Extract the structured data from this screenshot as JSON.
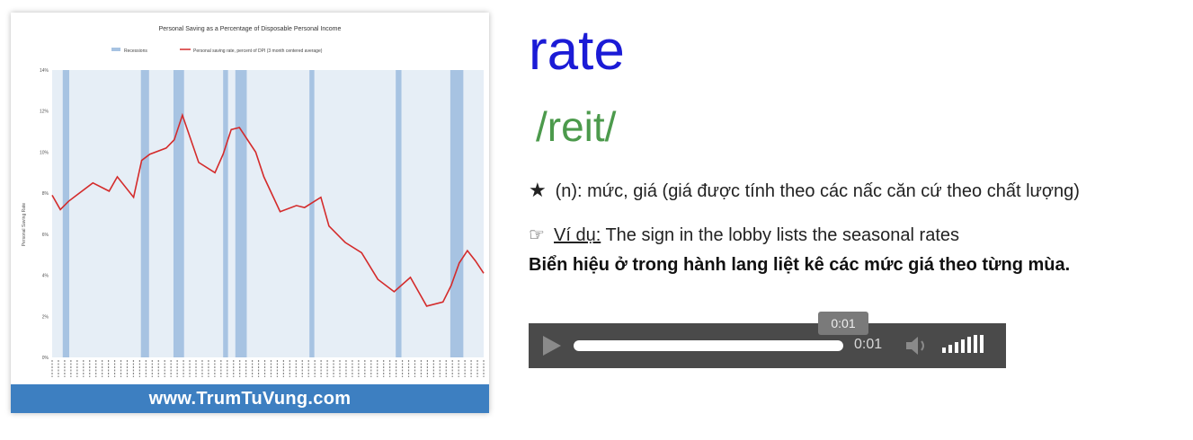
{
  "image_card": {
    "watermark": "www.TrumTuVung.com",
    "chart_data": {
      "type": "line",
      "title": "Personal Saving as a Percentage of Disposable Personal Income",
      "legend": [
        "Recessions",
        "Personal saving rate, percent of DPI (3 month centered average)"
      ],
      "ylabel": "Personal Saving Rate",
      "yticks": [
        "14%",
        "12%",
        "10%",
        "8%",
        "6%",
        "4%",
        "2%",
        "0%"
      ],
      "ylim": [
        0,
        14
      ],
      "xlim": [
        1959,
        2012
      ],
      "x": [
        1959,
        1960,
        1961,
        1962,
        1964,
        1966,
        1967,
        1969,
        1970,
        1971,
        1973,
        1974,
        1975,
        1977,
        1979,
        1980,
        1981,
        1982,
        1984,
        1985,
        1987,
        1989,
        1990,
        1992,
        1993,
        1995,
        1997,
        1999,
        2001,
        2003,
        2005,
        2007,
        2008,
        2009,
        2010,
        2011,
        2012
      ],
      "y": [
        7.9,
        7.2,
        7.6,
        7.9,
        8.5,
        8.1,
        8.8,
        7.8,
        9.6,
        9.9,
        10.2,
        10.6,
        11.8,
        9.5,
        9.0,
        9.9,
        11.1,
        11.2,
        10.0,
        8.8,
        7.1,
        7.4,
        7.3,
        7.8,
        6.4,
        5.6,
        5.1,
        3.8,
        3.2,
        3.9,
        2.5,
        2.7,
        3.5,
        4.6,
        5.2,
        4.7,
        4.1
      ],
      "recessions": [
        [
          1960.3,
          1961.1
        ],
        [
          1969.9,
          1970.9
        ],
        [
          1973.9,
          1975.2
        ],
        [
          1980.0,
          1980.6
        ],
        [
          1981.5,
          1982.9
        ],
        [
          1990.6,
          1991.2
        ],
        [
          2001.2,
          2001.9
        ],
        [
          2007.9,
          2009.5
        ]
      ],
      "colors": {
        "line": "#d42b2b",
        "recession": "#a7c3e2",
        "plot_bg": "#e6eef6"
      }
    }
  },
  "entry": {
    "word": "rate",
    "phonetic": "/reit/",
    "definition": "(n): mức, giá (giá được tính theo các nấc căn cứ theo chất lượng)",
    "example_label": "Ví dụ:",
    "example_text": " The sign in the lobby lists the seasonal rates",
    "translation": "Biển hiệu ở trong hành lang liệt kê các mức giá theo từng mùa."
  },
  "player": {
    "current_time": "0:01",
    "tooltip_time": "0:01",
    "progress": 1.0,
    "volume_bars": 7
  }
}
